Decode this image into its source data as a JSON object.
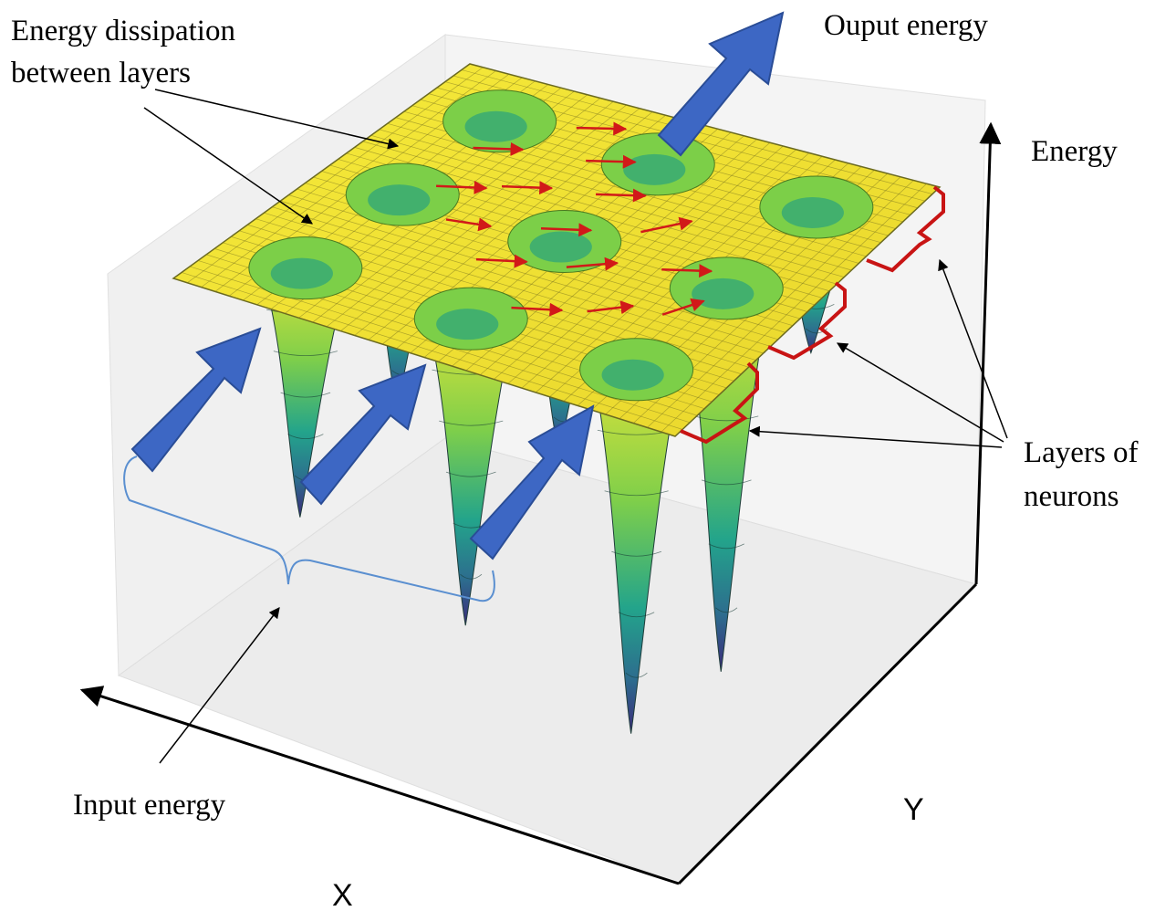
{
  "labels": {
    "dissipation_line1": "Energy dissipation",
    "dissipation_line2": "between layers",
    "output_energy": "Ouput energy",
    "energy_axis": "Energy",
    "layers_line1": "Layers of",
    "layers_line2": "neurons",
    "input_energy": "Input energy",
    "x_axis": "X",
    "y_axis": "Y"
  },
  "wells": [
    {
      "row": 0,
      "col": 0,
      "depth": 0.3
    },
    {
      "row": 0,
      "col": 1,
      "depth": 0.35
    },
    {
      "row": 0,
      "col": 2,
      "depth": 0.38
    },
    {
      "row": 1,
      "col": 0,
      "depth": 0.55
    },
    {
      "row": 1,
      "col": 1,
      "depth": 0.55
    },
    {
      "row": 1,
      "col": 2,
      "depth": 1.0
    },
    {
      "row": 2,
      "col": 0,
      "depth": 0.65
    },
    {
      "row": 2,
      "col": 1,
      "depth": 0.8
    },
    {
      "row": 2,
      "col": 2,
      "depth": 0.95
    }
  ],
  "colors": {
    "surface_top": "#f5e635",
    "surface_bottom": "#3b2a7a",
    "big_arrows": "#3d67c4",
    "small_arrows": "#d11919",
    "brackets": "#c81414",
    "input_brace": "#5a8fd0"
  }
}
